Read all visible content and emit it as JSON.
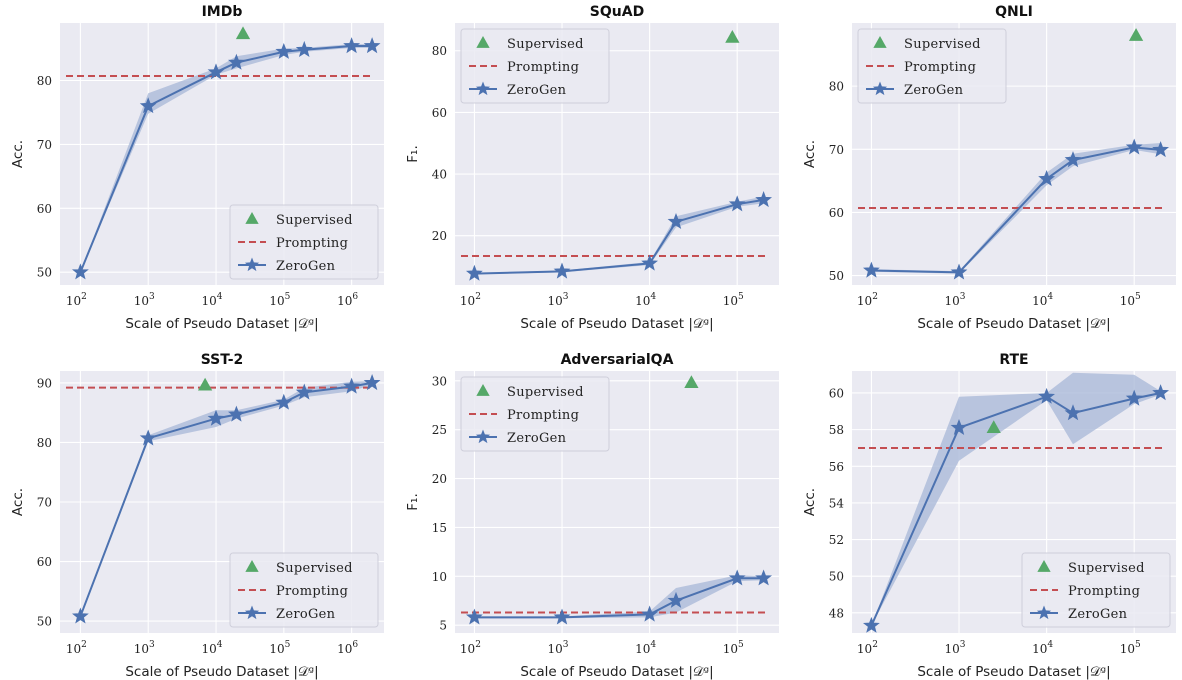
{
  "colors": {
    "background": "#eaeaf2",
    "grid": "#ffffff",
    "zerogen": "#4c72b0",
    "band": "#a7b7d7",
    "prompting": "#c44e52",
    "supervised": "#55a868"
  },
  "chart_data": [
    {
      "type": "line",
      "title": "IMDb",
      "xlabel": "Scale of Pseudo Dataset |𝒟ᵍ|",
      "ylabel": "Acc.",
      "xscale": "log",
      "xlim": [
        50,
        3000000
      ],
      "ylim": [
        48,
        89
      ],
      "x_ticks": [
        100,
        1000,
        10000,
        100000,
        1000000
      ],
      "x_tick_exponents": [
        "2",
        "3",
        "4",
        "5",
        "6"
      ],
      "y_ticks": [
        50,
        60,
        70,
        80
      ],
      "legend_position": "lower-right",
      "series": [
        {
          "name": "ZeroGen",
          "x": [
            100,
            1000,
            10000,
            20000,
            100000,
            200000,
            1000000,
            2000000
          ],
          "y": [
            50.0,
            76.0,
            81.3,
            82.8,
            84.5,
            84.8,
            85.4,
            85.4
          ],
          "y_low": [
            50.0,
            74.8,
            80.9,
            81.9,
            84.0,
            84.5,
            85.1,
            85.1
          ],
          "y_high": [
            50.0,
            78.0,
            81.9,
            83.8,
            85.0,
            85.1,
            85.7,
            85.7
          ]
        },
        {
          "name": "Prompting",
          "y": 80.7
        },
        {
          "name": "Supervised",
          "x": 25000,
          "y": 87.3
        }
      ],
      "legend": {
        "supervised": "Supervised",
        "prompting": "Prompting",
        "zerogen": "ZeroGen"
      }
    },
    {
      "type": "line",
      "title": "SQuAD",
      "xlabel": "Scale of Pseudo Dataset |𝒟ᵍ|",
      "ylabel": "F₁.",
      "xscale": "log",
      "xlim": [
        60,
        300000
      ],
      "ylim": [
        4,
        89
      ],
      "x_ticks": [
        100,
        1000,
        10000,
        100000
      ],
      "x_tick_exponents": [
        "2",
        "3",
        "4",
        "5"
      ],
      "y_ticks": [
        20,
        40,
        60,
        80
      ],
      "legend_position": "upper-left",
      "series": [
        {
          "name": "ZeroGen",
          "x": [
            100,
            1000,
            10000,
            20000,
            100000,
            200000
          ],
          "y": [
            7.7,
            8.4,
            11.0,
            24.5,
            30.2,
            31.6
          ],
          "y_low": [
            7.5,
            8.1,
            10.5,
            22.7,
            29.4,
            30.5
          ],
          "y_high": [
            7.9,
            8.7,
            11.5,
            26.3,
            31.0,
            32.7
          ]
        },
        {
          "name": "Prompting",
          "y": 13.4
        },
        {
          "name": "Supervised",
          "x": 88000,
          "y": 84.3
        }
      ],
      "legend": {
        "supervised": "Supervised",
        "prompting": "Prompting",
        "zerogen": "ZeroGen"
      }
    },
    {
      "type": "line",
      "title": "QNLI",
      "xlabel": "Scale of Pseudo Dataset |𝒟ᵍ|",
      "ylabel": "Acc.",
      "xscale": "log",
      "xlim": [
        60,
        300000
      ],
      "ylim": [
        48.5,
        90
      ],
      "x_ticks": [
        100,
        1000,
        10000,
        100000
      ],
      "x_tick_exponents": [
        "2",
        "3",
        "4",
        "5"
      ],
      "y_ticks": [
        50,
        60,
        70,
        80
      ],
      "legend_position": "upper-left",
      "series": [
        {
          "name": "ZeroGen",
          "x": [
            100,
            1000,
            10000,
            20000,
            100000,
            200000
          ],
          "y": [
            50.8,
            50.5,
            65.3,
            68.3,
            70.3,
            69.9
          ],
          "y_low": [
            50.6,
            50.3,
            64.3,
            67.3,
            69.9,
            69.2
          ],
          "y_high": [
            51.0,
            50.7,
            66.3,
            69.3,
            70.7,
            71.0
          ]
        },
        {
          "name": "Prompting",
          "y": 60.7
        },
        {
          "name": "Supervised",
          "x": 105000,
          "y": 88.0
        }
      ],
      "legend": {
        "supervised": "Supervised",
        "prompting": "Prompting",
        "zerogen": "ZeroGen"
      }
    },
    {
      "type": "line",
      "title": "SST-2",
      "xlabel": "Scale of Pseudo Dataset |𝒟ᵍ|",
      "ylabel": "Acc.",
      "xscale": "log",
      "xlim": [
        50,
        3000000
      ],
      "ylim": [
        48,
        92
      ],
      "x_ticks": [
        100,
        1000,
        10000,
        100000,
        1000000
      ],
      "x_tick_exponents": [
        "2",
        "3",
        "4",
        "5",
        "6"
      ],
      "y_ticks": [
        50,
        60,
        70,
        80,
        90
      ],
      "legend_position": "lower-right",
      "series": [
        {
          "name": "ZeroGen",
          "x": [
            100,
            1000,
            10000,
            20000,
            100000,
            200000,
            1000000,
            2000000
          ],
          "y": [
            50.8,
            80.7,
            84.0,
            84.7,
            86.7,
            88.4,
            89.4,
            90.0
          ],
          "y_low": [
            50.7,
            80.2,
            82.6,
            84.0,
            86.2,
            87.6,
            88.6,
            89.7
          ],
          "y_high": [
            50.9,
            81.2,
            85.4,
            85.4,
            87.2,
            89.2,
            90.2,
            90.3
          ]
        },
        {
          "name": "Prompting",
          "y": 89.2
        },
        {
          "name": "Supervised",
          "x": 6900,
          "y": 89.6
        }
      ],
      "legend": {
        "supervised": "Supervised",
        "prompting": "Prompting",
        "zerogen": "ZeroGen"
      }
    },
    {
      "type": "line",
      "title": "AdversarialQA",
      "xlabel": "Scale of Pseudo Dataset |𝒟ᵍ|",
      "ylabel": "F₁.",
      "xscale": "log",
      "xlim": [
        60,
        300000
      ],
      "ylim": [
        4.2,
        31
      ],
      "x_ticks": [
        100,
        1000,
        10000,
        100000
      ],
      "x_tick_exponents": [
        "2",
        "3",
        "4",
        "5"
      ],
      "y_ticks": [
        5,
        10,
        15,
        20,
        25,
        30
      ],
      "legend_position": "upper-left",
      "series": [
        {
          "name": "ZeroGen",
          "x": [
            100,
            1000,
            10000,
            20000,
            100000,
            200000
          ],
          "y": [
            5.8,
            5.8,
            6.1,
            7.5,
            9.8,
            9.8
          ],
          "y_low": [
            5.7,
            5.7,
            5.8,
            6.3,
            9.5,
            9.6
          ],
          "y_high": [
            5.9,
            5.9,
            6.4,
            8.8,
            10.1,
            10.0
          ]
        },
        {
          "name": "Prompting",
          "y": 6.3
        },
        {
          "name": "Supervised",
          "x": 30000,
          "y": 29.8
        }
      ],
      "legend": {
        "supervised": "Supervised",
        "prompting": "Prompting",
        "zerogen": "ZeroGen"
      }
    },
    {
      "type": "line",
      "title": "RTE",
      "xlabel": "Scale of Pseudo Dataset |𝒟ᵍ|",
      "ylabel": "Acc.",
      "xscale": "log",
      "xlim": [
        60,
        300000
      ],
      "ylim": [
        46.9,
        61.2
      ],
      "x_ticks": [
        100,
        1000,
        10000,
        100000
      ],
      "x_tick_exponents": [
        "2",
        "3",
        "4",
        "5"
      ],
      "y_ticks": [
        48,
        50,
        52,
        54,
        56,
        58,
        60
      ],
      "legend_position": "lower-right",
      "series": [
        {
          "name": "ZeroGen",
          "x": [
            100,
            1000,
            10000,
            20000,
            100000,
            200000
          ],
          "y": [
            47.3,
            58.1,
            59.8,
            58.9,
            59.7,
            60.0
          ],
          "y_low": [
            47.3,
            56.3,
            59.6,
            57.2,
            59.4,
            59.9
          ],
          "y_high": [
            47.3,
            59.8,
            60.0,
            61.1,
            61.0,
            60.1
          ]
        },
        {
          "name": "Prompting",
          "y": 57.0
        },
        {
          "name": "Supervised",
          "x": 2490,
          "y": 58.1
        }
      ],
      "legend": {
        "supervised": "Supervised",
        "prompting": "Prompting",
        "zerogen": "ZeroGen"
      }
    }
  ]
}
